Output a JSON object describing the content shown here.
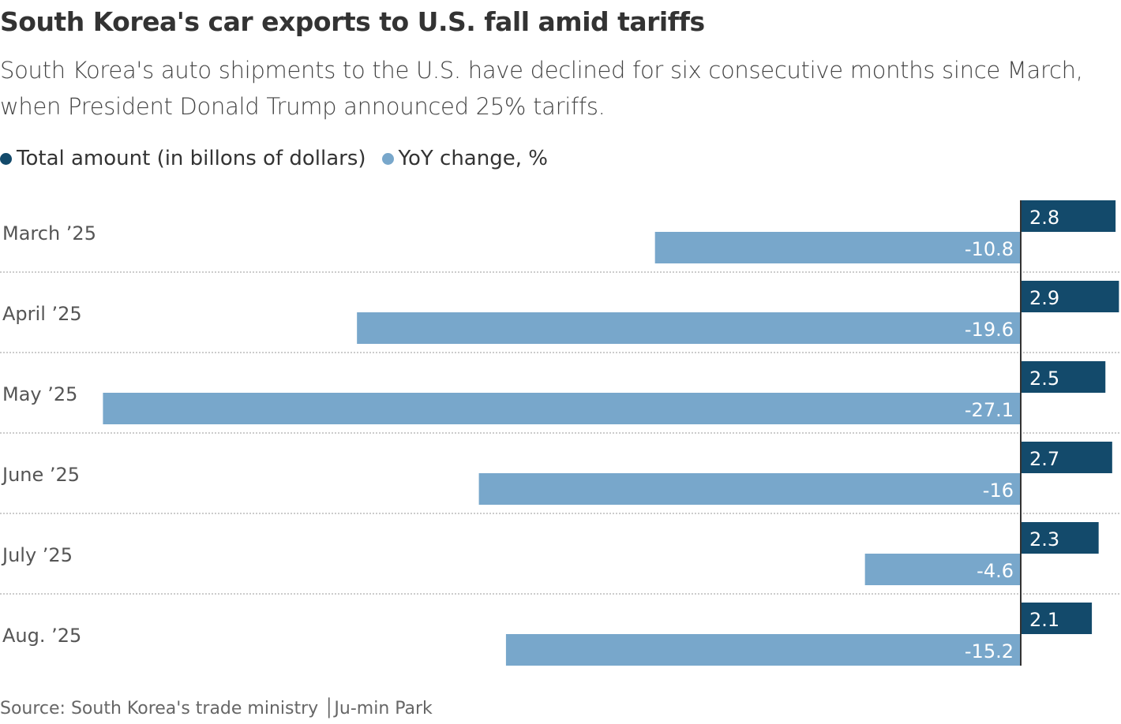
{
  "colors": {
    "total": "#134a6b",
    "yoy": "#78a7cb",
    "axis": "#333333"
  },
  "chart_data": {
    "type": "bar",
    "title": "South Korea's car exports to U.S. fall amid tariffs",
    "subtitle": "South Korea's auto shipments to the U.S. have declined for six consecutive months since March, when President Donald Trump announced 25% tariffs.",
    "categories": [
      "March ’25",
      "April ’25",
      "May ’25",
      "June ’25",
      "July ’25",
      "Aug. ’25"
    ],
    "series": [
      {
        "name": "Total amount (in billons of dollars)",
        "values": [
          2.8,
          2.9,
          2.5,
          2.7,
          2.3,
          2.1
        ]
      },
      {
        "name": "YoY change, %",
        "values": [
          -10.8,
          -19.6,
          -27.1,
          -16,
          -4.6,
          -15.2
        ]
      }
    ],
    "orientation": "horizontal",
    "legend": "top-left",
    "grid": false
  },
  "source": "Source: South Korea's trade ministry  │Ju-min Park"
}
